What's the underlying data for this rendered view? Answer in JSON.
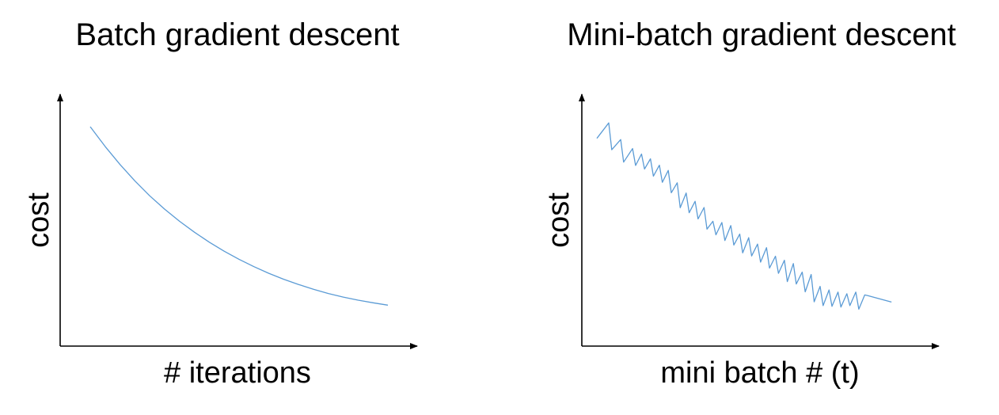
{
  "chart_data": [
    {
      "type": "line",
      "title": "Batch gradient descent",
      "xlabel": "# iterations",
      "ylabel": "cost",
      "xlim": [
        0,
        100
      ],
      "ylim": [
        0,
        100
      ],
      "ticks": "none",
      "grid": false,
      "legend": "none",
      "line_color": "#5B9BD5",
      "axis_color": "#000000",
      "series": [
        {
          "x": [
            0,
            5,
            10,
            15,
            20,
            25,
            30,
            35,
            40,
            45,
            50,
            55,
            60,
            65,
            70,
            75,
            80,
            85,
            90,
            95,
            100
          ],
          "y": [
            90.0,
            81.7,
            74.1,
            67.2,
            60.9,
            55.3,
            50.2,
            45.6,
            41.4,
            37.6,
            34.2,
            31.1,
            28.3,
            25.8,
            23.6,
            21.6,
            19.8,
            18.3,
            17.0,
            15.9,
            14.9
          ]
        }
      ]
    },
    {
      "type": "line",
      "title": "Mini-batch gradient descent",
      "xlabel": "mini batch # (t)",
      "ylabel": "cost",
      "xlim": [
        0,
        100
      ],
      "ylim": [
        0,
        100
      ],
      "ticks": "none",
      "grid": false,
      "legend": "none",
      "line_color": "#5B9BD5",
      "axis_color": "#000000",
      "series": [
        {
          "x": [
            0,
            4,
            5,
            8,
            9,
            12,
            13,
            15,
            16,
            18,
            19,
            21,
            22,
            24,
            25,
            27,
            28,
            30,
            31,
            33,
            34,
            36,
            37,
            39,
            40,
            42,
            43,
            45,
            46,
            48,
            49,
            51,
            52,
            54,
            55,
            57,
            58,
            60,
            61,
            63,
            64,
            66,
            67,
            69,
            70,
            72,
            73,
            75,
            76,
            78,
            79,
            81,
            82,
            84,
            85,
            87,
            88,
            90,
            91,
            99
          ],
          "y": [
            85.1,
            91.6,
            80.3,
            84.6,
            75.1,
            80.8,
            73.7,
            78.5,
            72.2,
            76.5,
            69.2,
            73.8,
            66.6,
            71.6,
            62.2,
            66.4,
            55.9,
            62.1,
            53.8,
            58.6,
            51.2,
            56.0,
            46.9,
            50.2,
            44.5,
            49.7,
            42.1,
            48.4,
            40.2,
            44.8,
            36.9,
            43.3,
            35.6,
            40.6,
            33.0,
            39.1,
            30.5,
            35.5,
            28.3,
            33.8,
            24.8,
            32.4,
            23.8,
            28.8,
            20.5,
            27.8,
            16.3,
            22.8,
            14.7,
            21.3,
            14.4,
            20.4,
            14.1,
            19.7,
            14.7,
            20.4,
            13.2,
            19.2,
            18.9,
            16.2
          ]
        }
      ]
    }
  ]
}
